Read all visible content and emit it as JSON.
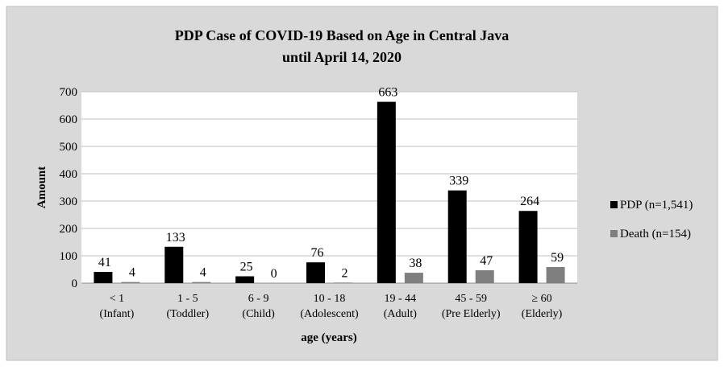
{
  "chart_data": {
    "type": "bar",
    "title_line1": "PDP  Case of COVID-19 Based on Age in Central Java",
    "title_line2": "until April 14, 2020",
    "xlabel": "age (years)",
    "ylabel": "Amount",
    "ylim": [
      0,
      700
    ],
    "yticks": [
      0,
      100,
      200,
      300,
      400,
      500,
      600,
      700
    ],
    "grid": true,
    "legend_position": "right",
    "categories": [
      {
        "line1": "< 1",
        "line2": "(Infant)"
      },
      {
        "line1": "1 - 5",
        "line2": "(Toddler)"
      },
      {
        "line1": "6 - 9",
        "line2": "(Child)"
      },
      {
        "line1": "10 - 18",
        "line2": "(Adolescent)"
      },
      {
        "line1": "19 - 44",
        "line2": "(Adult)"
      },
      {
        "line1": "45 - 59",
        "line2": "(Pre Elderly)"
      },
      {
        "line1": "≥ 60",
        "line2": "(Elderly)"
      }
    ],
    "series": [
      {
        "name": "PDP (n=1,541)",
        "color": "#000000",
        "values": [
          41,
          133,
          25,
          76,
          663,
          339,
          264
        ]
      },
      {
        "name": "Death (n=154)",
        "color": "#7f7f7f",
        "values": [
          4,
          4,
          0,
          2,
          38,
          47,
          59
        ]
      }
    ],
    "background_color": "#d9d9d9",
    "plot_background_color": "#ffffff"
  }
}
